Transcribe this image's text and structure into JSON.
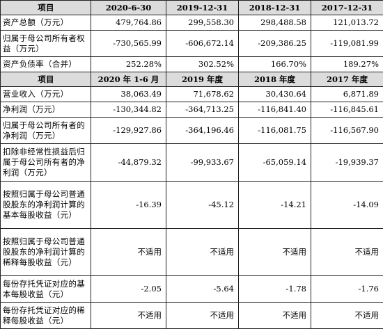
{
  "balance_section": {
    "header": [
      "项目",
      "2020-6-30",
      "2019-12-31",
      "2018-12-31",
      "2017-12-31"
    ],
    "rows": [
      {
        "label": "资产总额（万元）",
        "values": [
          "479,764.86",
          "299,558.30",
          "298,488.58",
          "121,013.72"
        ]
      },
      {
        "label": "归属于母公司所有者权益（万元）",
        "values": [
          "-730,565.99",
          "-606,672.14",
          "-209,386.25",
          "-119,081.99"
        ]
      },
      {
        "label": "资产负债率（合并）",
        "values": [
          "252.28%",
          "302.52%",
          "166.70%",
          "189.27%"
        ]
      }
    ]
  },
  "income_section": {
    "header": [
      "项目",
      "2020 年 1-6 月",
      "2019 年度",
      "2018 年度",
      "2017 年度"
    ],
    "rows": [
      {
        "label": "营业收入（万元）",
        "values": [
          "38,063.49",
          "71,678.62",
          "30,430.64",
          "6,871.89"
        ]
      },
      {
        "label": "净利润（万元）",
        "values": [
          "-130,344.82",
          "-364,713.25",
          "-116,841.40",
          "-116,845.61"
        ]
      },
      {
        "label": "归属于母公司所有者的净利润（万元）",
        "values": [
          "-129,927.86",
          "-364,196.46",
          "-116,081.75",
          "-116,567.90"
        ]
      },
      {
        "label": "扣除非经常性损益后归属于母公司所有者的净利润（万元）",
        "values": [
          "-44,879.32",
          "-99,933.67",
          "-65,059.14",
          "-19,939.37"
        ]
      },
      {
        "label": "按照归属于母公司普通股股东的净利润计算的基本每股收益（元）",
        "values": [
          "-16.39",
          "-45.12",
          "-14.21",
          "-14.09"
        ]
      },
      {
        "label": "按照归属于母公司普通股股东的净利润计算的稀释每股收益（元）",
        "values": [
          "不适用",
          "不适用",
          "不适用",
          "不适用"
        ]
      },
      {
        "label": "每份存托凭证对应的基本每股收益（元）",
        "values": [
          "-2.05",
          "-5.64",
          "-1.78",
          "-1.76"
        ]
      },
      {
        "label": "每份存托凭证对应的稀释每股收益（元）",
        "values": [
          "不适用",
          "不适用",
          "不适用",
          "不适用"
        ]
      }
    ]
  }
}
